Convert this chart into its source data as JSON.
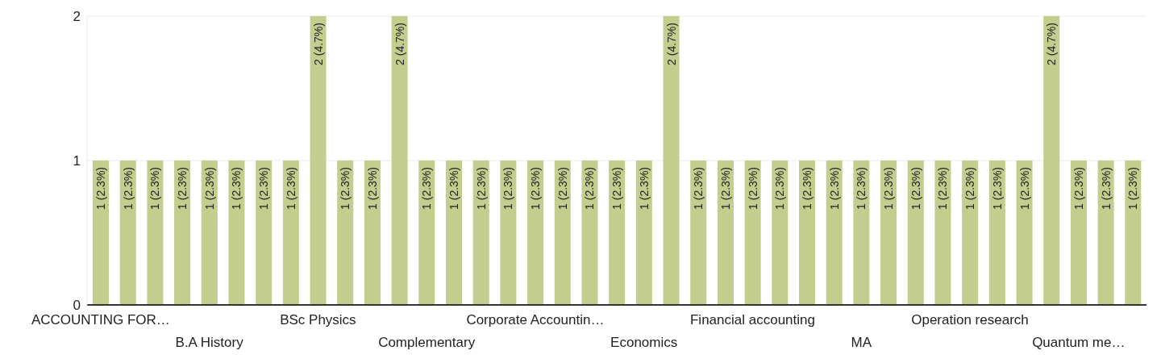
{
  "chart_data": {
    "type": "bar",
    "categories": [
      "ACCOUNTING FOR…",
      null,
      null,
      null,
      "B.A History",
      null,
      null,
      null,
      "BSc Physics",
      null,
      null,
      null,
      "Complementary",
      null,
      null,
      null,
      "Corporate Accountin…",
      null,
      null,
      null,
      "Economics",
      null,
      null,
      null,
      "Financial accounting",
      null,
      null,
      null,
      "MA",
      null,
      null,
      null,
      "Operation research",
      null,
      null,
      null,
      "Quantum me…",
      null,
      null
    ],
    "values": [
      1,
      1,
      1,
      1,
      1,
      1,
      1,
      1,
      2,
      1,
      1,
      2,
      1,
      1,
      1,
      1,
      1,
      1,
      1,
      1,
      1,
      2,
      1,
      1,
      1,
      1,
      1,
      1,
      1,
      1,
      1,
      1,
      1,
      1,
      1,
      2,
      1,
      1,
      1
    ],
    "value_labels": [
      "1 (2.3%)",
      "1 (2.3%)",
      "1 (2.3%)",
      "1 (2.3%)",
      "1 (2.3%)",
      "1 (2.3%)",
      "1 (2.3%)",
      "1 (2.3%)",
      "2 (4.7%)",
      "1 (2.3%)",
      "1 (2.3%)",
      "2 (4.7%)",
      "1 (2.3%)",
      "1 (2.3%)",
      "1 (2.3%)",
      "1 (2.3%)",
      "1 (2.3%)",
      "1 (2.3%)",
      "1 (2.3%)",
      "1 (2.3%)",
      "1 (2.3%)",
      "2 (4.7%)",
      "1 (2.3%)",
      "1 (2.3%)",
      "1 (2.3%)",
      "1 (2.3%)",
      "1 (2.3%)",
      "1 (2.3%)",
      "1 (2.3%)",
      "1 (2.3%)",
      "1 (2.3%)",
      "1 (2.3%)",
      "1 (2.3%)",
      "1 (2.3%)",
      "1 (2.3%)",
      "2 (4.7%)",
      "1 (2.3%)",
      "1 (2.3%)",
      "1 (2.3%)"
    ],
    "color": "#c2cd8e",
    "ylim": [
      0,
      2
    ],
    "yticks": [
      0,
      1,
      2
    ],
    "grid": "y"
  }
}
